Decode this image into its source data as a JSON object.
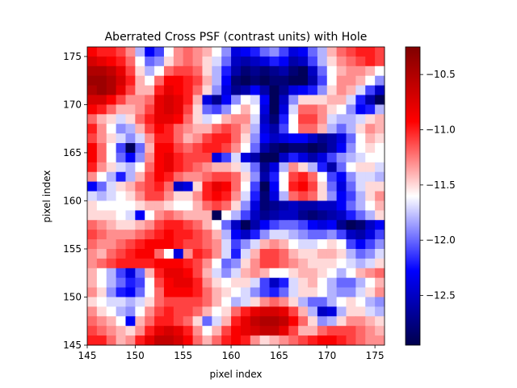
{
  "chart_data": {
    "type": "heatmap",
    "title": "Aberrated Cross PSF (contrast units) with Hole",
    "xlabel": "pixel index",
    "ylabel": "pixel index",
    "xlim": [
      145,
      176
    ],
    "ylim": [
      145,
      176
    ],
    "x_ticks": [
      145,
      150,
      155,
      160,
      165,
      170,
      175
    ],
    "y_ticks": [
      145,
      150,
      155,
      160,
      165,
      170,
      175
    ],
    "colormap": "seismic",
    "colorbar": {
      "vmin": -12.95,
      "vmax": -10.25,
      "ticks": [
        -10.5,
        -11.0,
        -11.5,
        -12.0,
        -12.5
      ],
      "tick_labels": [
        "−10.5",
        "−11.0",
        "−11.5",
        "−12.0",
        "−12.5"
      ]
    },
    "rows_top_to_bottom": [
      [
        -10.9,
        -11.0,
        -11.0,
        -11.1,
        -11.3,
        -11.8,
        -12.3,
        -12.1,
        -11.6,
        -11.3,
        -11.2,
        -11.3,
        -11.4,
        -11.6,
        -11.9,
        -12.4,
        -12.3,
        -12.2,
        -12.0,
        -11.9,
        -12.1,
        -12.4,
        -12.3,
        -12.0,
        -11.8,
        -11.4,
        -11.2,
        -11.1,
        -11.0,
        -11.0,
        -11.1
      ],
      [
        -10.7,
        -10.8,
        -10.9,
        -11.0,
        -11.2,
        -11.6,
        -12.0,
        -11.9,
        -11.5,
        -11.3,
        -11.2,
        -11.3,
        -11.5,
        -11.7,
        -12.0,
        -12.5,
        -12.6,
        -12.5,
        -12.4,
        -12.2,
        -12.3,
        -12.6,
        -12.5,
        -12.1,
        -11.8,
        -11.5,
        -11.3,
        -11.2,
        -11.1,
        -11.0,
        -11.1
      ],
      [
        -10.5,
        -10.5,
        -10.6,
        -10.8,
        -11.1,
        -11.5,
        -11.8,
        -11.6,
        -11.2,
        -11.1,
        -11.1,
        -11.2,
        -11.5,
        -11.8,
        -12.2,
        -12.6,
        -12.8,
        -12.7,
        -12.8,
        -12.7,
        -12.6,
        -12.8,
        -12.9,
        -12.5,
        -12.0,
        -11.6,
        -11.4,
        -11.3,
        -11.3,
        -11.4,
        -11.6
      ],
      [
        -10.4,
        -10.4,
        -10.5,
        -10.7,
        -11.0,
        -11.4,
        -11.6,
        -11.2,
        -10.9,
        -10.9,
        -11.0,
        -11.1,
        -11.4,
        -11.8,
        -12.3,
        -12.8,
        -12.9,
        -12.8,
        -12.9,
        -12.8,
        -12.8,
        -12.9,
        -12.9,
        -12.6,
        -12.1,
        -11.6,
        -11.3,
        -11.3,
        -11.4,
        -11.6,
        -11.9
      ],
      [
        -10.5,
        -10.4,
        -10.5,
        -10.8,
        -11.1,
        -11.4,
        -11.4,
        -11.0,
        -10.8,
        -10.9,
        -11.0,
        -11.2,
        -11.5,
        -11.9,
        -12.4,
        -12.7,
        -12.6,
        -12.3,
        -12.6,
        -12.9,
        -12.7,
        -12.4,
        -12.3,
        -12.2,
        -11.9,
        -11.5,
        -11.3,
        -11.4,
        -11.7,
        -12.1,
        -12.5
      ],
      [
        -10.7,
        -10.7,
        -10.9,
        -11.1,
        -11.3,
        -11.3,
        -11.2,
        -10.8,
        -10.7,
        -10.8,
        -11.0,
        -11.4,
        -12.4,
        -12.7,
        -12.3,
        -11.9,
        -11.6,
        -11.7,
        -12.3,
        -12.9,
        -12.5,
        -11.9,
        -11.5,
        -11.5,
        -11.5,
        -11.4,
        -11.4,
        -11.7,
        -12.2,
        -12.6,
        -12.9
      ],
      [
        -10.9,
        -11.0,
        -11.2,
        -11.4,
        -11.4,
        -11.3,
        -11.1,
        -10.8,
        -10.7,
        -10.8,
        -11.1,
        -11.5,
        -12.0,
        -12.1,
        -11.9,
        -11.6,
        -11.4,
        -11.6,
        -12.4,
        -12.9,
        -12.4,
        -11.7,
        -11.2,
        -11.2,
        -11.3,
        -11.5,
        -11.6,
        -11.9,
        -12.3,
        -12.2,
        -11.8
      ],
      [
        -11.2,
        -11.4,
        -11.5,
        -11.7,
        -11.5,
        -11.2,
        -11.0,
        -10.8,
        -10.8,
        -10.9,
        -11.2,
        -11.5,
        -11.7,
        -11.6,
        -11.4,
        -11.3,
        -11.3,
        -11.7,
        -12.5,
        -12.8,
        -12.2,
        -11.6,
        -11.1,
        -11.1,
        -11.3,
        -11.7,
        -11.8,
        -11.8,
        -11.7,
        -11.5,
        -11.4
      ],
      [
        -11.0,
        -11.3,
        -11.6,
        -11.9,
        -11.8,
        -11.4,
        -11.1,
        -10.9,
        -11.0,
        -11.2,
        -11.3,
        -11.4,
        -11.4,
        -11.2,
        -11.1,
        -11.2,
        -11.4,
        -11.8,
        -12.4,
        -12.6,
        -12.1,
        -11.6,
        -11.2,
        -11.2,
        -11.4,
        -11.8,
        -12.0,
        -11.8,
        -11.5,
        -11.3,
        -11.4
      ],
      [
        -11.1,
        -11.3,
        -11.5,
        -11.7,
        -11.9,
        -11.7,
        -11.3,
        -11.0,
        -11.0,
        -11.2,
        -11.4,
        -11.3,
        -11.1,
        -11.0,
        -11.0,
        -11.2,
        -11.5,
        -11.9,
        -12.3,
        -12.5,
        -12.4,
        -12.3,
        -12.3,
        -12.5,
        -12.7,
        -12.6,
        -12.4,
        -12.0,
        -11.6,
        -11.4,
        -11.5
      ],
      [
        -10.9,
        -11.2,
        -11.6,
        -12.1,
        -12.9,
        -12.0,
        -11.4,
        -10.9,
        -10.9,
        -11.1,
        -11.2,
        -11.1,
        -11.0,
        -11.0,
        -11.1,
        -11.3,
        -11.6,
        -12.0,
        -12.6,
        -12.8,
        -12.9,
        -12.8,
        -12.8,
        -12.9,
        -12.8,
        -12.6,
        -12.3,
        -11.9,
        -11.6,
        -11.5,
        -11.6
      ],
      [
        -10.9,
        -11.2,
        -11.6,
        -12.0,
        -12.3,
        -11.9,
        -11.3,
        -10.9,
        -10.8,
        -11.0,
        -11.1,
        -11.1,
        -11.1,
        -12.4,
        -12.1,
        -11.7,
        -12.4,
        -12.6,
        -12.9,
        -12.9,
        -12.5,
        -12.2,
        -12.4,
        -12.6,
        -12.4,
        -12.1,
        -11.9,
        -11.8,
        -11.7,
        -11.6,
        -11.6
      ],
      [
        -11.0,
        -11.3,
        -11.5,
        -11.7,
        -11.8,
        -11.6,
        -11.2,
        -10.9,
        -10.8,
        -11.0,
        -11.1,
        -11.2,
        -11.3,
        -11.4,
        -11.4,
        -11.5,
        -11.7,
        -12.0,
        -12.7,
        -12.4,
        -11.8,
        -11.3,
        -11.5,
        -11.8,
        -12.2,
        -12.6,
        -12.0,
        -11.6,
        -11.5,
        -11.5,
        -11.7
      ],
      [
        -11.3,
        -11.6,
        -11.8,
        -12.2,
        -11.8,
        -11.4,
        -11.1,
        -10.9,
        -11.0,
        -11.2,
        -11.3,
        -11.3,
        -11.2,
        -11.1,
        -11.1,
        -11.2,
        -11.5,
        -11.9,
        -12.6,
        -12.2,
        -11.6,
        -11.1,
        -11.0,
        -11.2,
        -11.6,
        -12.1,
        -12.3,
        -11.9,
        -11.7,
        -11.7,
        -11.8
      ],
      [
        -12.3,
        -12.0,
        -11.7,
        -11.5,
        -11.4,
        -11.2,
        -11.1,
        -11.0,
        -11.2,
        -12.5,
        -12.4,
        -11.5,
        -11.0,
        -10.8,
        -10.9,
        -11.2,
        -11.6,
        -12.1,
        -12.9,
        -12.3,
        -11.6,
        -11.0,
        -10.9,
        -11.1,
        -11.5,
        -12.0,
        -12.4,
        -12.0,
        -11.7,
        -11.5,
        -11.5
      ],
      [
        -11.7,
        -11.8,
        -11.7,
        -11.6,
        -11.5,
        -11.3,
        -11.1,
        -11.1,
        -11.3,
        -11.5,
        -11.5,
        -11.3,
        -11.0,
        -10.9,
        -11.0,
        -11.3,
        -11.7,
        -12.2,
        -12.8,
        -12.4,
        -11.8,
        -11.2,
        -11.1,
        -11.2,
        -11.5,
        -11.9,
        -12.3,
        -12.1,
        -11.8,
        -11.5,
        -11.3
      ],
      [
        -11.5,
        -11.6,
        -11.6,
        -11.6,
        -11.6,
        -11.5,
        -11.4,
        -11.4,
        -11.5,
        -11.6,
        -11.6,
        -11.4,
        -11.2,
        -11.1,
        -11.2,
        -11.5,
        -11.9,
        -12.4,
        -12.8,
        -12.7,
        -12.6,
        -12.5,
        -12.6,
        -12.6,
        -12.5,
        -12.5,
        -12.3,
        -12.0,
        -11.8,
        -11.6,
        -11.4
      ],
      [
        -11.5,
        -11.5,
        -11.5,
        -11.6,
        -11.7,
        -12.3,
        -11.6,
        -11.3,
        -11.2,
        -11.3,
        -11.4,
        -11.4,
        -11.4,
        -12.9,
        -11.6,
        -11.8,
        -12.1,
        -12.5,
        -12.7,
        -12.6,
        -12.5,
        -12.5,
        -12.7,
        -12.8,
        -12.7,
        -12.6,
        -12.5,
        -12.2,
        -12.0,
        -11.8,
        -11.5
      ],
      [
        -11.2,
        -11.3,
        -11.4,
        -11.5,
        -11.5,
        -11.4,
        -11.3,
        -11.1,
        -11.0,
        -11.0,
        -11.1,
        -11.2,
        -11.4,
        -11.6,
        -12.0,
        -12.5,
        -12.9,
        -12.6,
        -12.3,
        -12.1,
        -12.0,
        -12.0,
        -12.1,
        -12.3,
        -12.4,
        -12.3,
        -12.7,
        -12.9,
        -12.8,
        -12.5,
        -12.3
      ],
      [
        -11.1,
        -11.2,
        -11.3,
        -11.3,
        -11.3,
        -11.2,
        -11.1,
        -11.0,
        -10.9,
        -11.0,
        -11.0,
        -11.1,
        -11.2,
        -11.4,
        -11.8,
        -12.3,
        -12.5,
        -12.2,
        -11.9,
        -11.7,
        -11.7,
        -11.8,
        -11.9,
        -12.0,
        -12.0,
        -11.9,
        -12.1,
        -12.5,
        -12.6,
        -12.4,
        -12.1
      ],
      [
        -11.2,
        -11.3,
        -11.3,
        -11.2,
        -11.1,
        -11.0,
        -10.9,
        -10.9,
        -10.9,
        -11.0,
        -11.1,
        -11.1,
        -11.2,
        -11.3,
        -11.7,
        -12.1,
        -11.9,
        -11.7,
        -11.4,
        -11.3,
        -11.4,
        -11.6,
        -11.7,
        -11.7,
        -11.6,
        -11.5,
        -11.6,
        -12.1,
        -12.3,
        -12.1,
        -11.9
      ],
      [
        -11.3,
        -11.4,
        -11.2,
        -11.1,
        -11.0,
        -10.9,
        -10.9,
        -11.2,
        -11.6,
        -12.4,
        -11.3,
        -11.0,
        -11.1,
        -11.3,
        -11.7,
        -12.2,
        -11.7,
        -11.4,
        -11.1,
        -11.1,
        -11.2,
        -11.4,
        -11.5,
        -11.5,
        -11.4,
        -11.4,
        -11.5,
        -11.8,
        -12.0,
        -11.9,
        -11.7
      ],
      [
        -11.3,
        -11.2,
        -11.1,
        -11.0,
        -11.0,
        -11.0,
        -11.0,
        -10.9,
        -10.9,
        -10.9,
        -11.0,
        -11.1,
        -11.3,
        -11.6,
        -12.0,
        -11.9,
        -11.5,
        -11.3,
        -11.1,
        -11.1,
        -11.2,
        -11.3,
        -11.4,
        -11.5,
        -11.5,
        -11.5,
        -11.6,
        -11.7,
        -11.8,
        -11.7,
        -11.5
      ],
      [
        -11.4,
        -11.6,
        -11.8,
        -12.1,
        -12.4,
        -12.0,
        -11.4,
        -11.0,
        -10.8,
        -10.8,
        -10.9,
        -11.1,
        -11.4,
        -11.7,
        -11.9,
        -11.7,
        -11.4,
        -11.3,
        -11.4,
        -11.6,
        -11.6,
        -11.5,
        -11.4,
        -11.4,
        -11.5,
        -11.6,
        -11.8,
        -11.6,
        -11.4,
        -11.3,
        -11.2
      ],
      [
        -11.4,
        -11.6,
        -11.8,
        -12.0,
        -12.2,
        -12.1,
        -11.6,
        -11.1,
        -10.9,
        -10.8,
        -10.8,
        -11.0,
        -11.3,
        -11.5,
        -11.6,
        -11.5,
        -11.5,
        -11.7,
        -12.1,
        -12.5,
        -12.2,
        -11.7,
        -11.5,
        -11.4,
        -11.6,
        -11.8,
        -12.0,
        -12.0,
        -11.8,
        -11.6,
        -11.4
      ],
      [
        -11.3,
        -11.5,
        -11.9,
        -12.2,
        -12.3,
        -12.0,
        -11.6,
        -11.2,
        -10.9,
        -10.9,
        -10.9,
        -11.0,
        -11.2,
        -11.4,
        -11.5,
        -11.6,
        -11.7,
        -11.9,
        -12.1,
        -12.2,
        -12.0,
        -11.7,
        -11.5,
        -11.5,
        -11.6,
        -11.8,
        -11.9,
        -11.9,
        -11.7,
        -11.5,
        -11.3
      ],
      [
        -11.5,
        -11.6,
        -11.7,
        -11.7,
        -11.8,
        -11.7,
        -11.5,
        -11.2,
        -11.1,
        -11.1,
        -11.1,
        -11.1,
        -11.2,
        -11.4,
        -11.6,
        -11.8,
        -11.7,
        -11.5,
        -11.3,
        -11.2,
        -11.3,
        -11.5,
        -11.8,
        -12.0,
        -12.0,
        -11.8,
        -11.6,
        -11.5,
        -11.6,
        -11.8,
        -11.9
      ],
      [
        -11.3,
        -11.5,
        -11.6,
        -11.8,
        -11.9,
        -11.6,
        -11.3,
        -11.1,
        -11.0,
        -11.1,
        -11.1,
        -11.2,
        -11.4,
        -11.6,
        -11.5,
        -11.2,
        -11.0,
        -10.8,
        -10.7,
        -10.7,
        -10.8,
        -11.1,
        -11.4,
        -11.8,
        -12.5,
        -12.4,
        -11.8,
        -11.5,
        -11.5,
        -11.7,
        -11.8
      ],
      [
        -11.2,
        -11.3,
        -11.4,
        -11.6,
        -12.3,
        -11.4,
        -11.2,
        -11.0,
        -11.0,
        -11.1,
        -11.2,
        -11.5,
        -12.0,
        -11.7,
        -11.4,
        -11.0,
        -10.8,
        -10.6,
        -10.5,
        -10.5,
        -10.6,
        -10.9,
        -11.2,
        -11.5,
        -11.9,
        -11.8,
        -11.5,
        -11.3,
        -11.3,
        -11.4,
        -11.5
      ],
      [
        -11.1,
        -11.2,
        -11.3,
        -11.4,
        -11.5,
        -11.3,
        -11.0,
        -10.8,
        -10.7,
        -10.8,
        -11.0,
        -11.3,
        -11.6,
        -11.4,
        -11.1,
        -10.9,
        -10.8,
        -10.7,
        -10.6,
        -10.6,
        -10.8,
        -11.1,
        -11.4,
        -11.4,
        -11.2,
        -11.1,
        -11.1,
        -11.1,
        -11.2,
        -11.3,
        -11.4
      ],
      [
        -11.0,
        -11.0,
        -11.2,
        -11.4,
        -11.3,
        -11.0,
        -10.8,
        -10.6,
        -10.6,
        -10.7,
        -10.9,
        -11.2,
        -11.4,
        -11.2,
        -11.0,
        -10.9,
        -11.0,
        -11.3,
        -11.5,
        -11.4,
        -11.3,
        -11.2,
        -11.1,
        -11.0,
        -10.9,
        -10.9,
        -11.0,
        -11.1,
        -11.2,
        -11.3,
        -11.3
      ]
    ]
  }
}
